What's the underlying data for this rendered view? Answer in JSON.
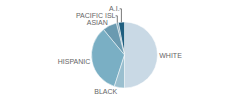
{
  "chart_data": {
    "type": "pie",
    "categories": [
      "WHITE",
      "A.I.",
      "PACIFIC ISL",
      "ASIAN",
      "HISPANIC",
      "BLACK"
    ],
    "values": [
      50,
      3,
      1,
      7,
      34,
      5
    ],
    "colors": [
      "#c9d9e5",
      "#1f5f80",
      "#7fa5b8",
      "#6a9ab0",
      "#7aafc4",
      "#9abfcf"
    ]
  }
}
